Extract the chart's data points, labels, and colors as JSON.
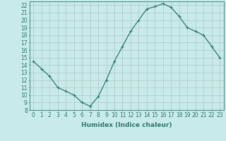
{
  "x": [
    0,
    1,
    2,
    3,
    4,
    5,
    6,
    7,
    8,
    9,
    10,
    11,
    12,
    13,
    14,
    15,
    16,
    17,
    18,
    19,
    20,
    21,
    22,
    23
  ],
  "y": [
    14.5,
    13.5,
    12.5,
    11.0,
    10.5,
    10.0,
    9.0,
    8.5,
    9.8,
    12.0,
    14.5,
    16.5,
    18.5,
    20.0,
    21.5,
    21.8,
    22.2,
    21.7,
    20.5,
    19.0,
    18.5,
    18.0,
    16.5,
    15.0
  ],
  "line_color": "#2d7a6e",
  "marker": "+",
  "markersize": 3,
  "linewidth": 0.9,
  "bg_color": "#c8eaea",
  "grid_color": "#b0c8c8",
  "xlabel": "Humidex (Indice chaleur)",
  "xlim": [
    -0.5,
    23.5
  ],
  "ylim": [
    8,
    22.5
  ],
  "yticks": [
    8,
    9,
    10,
    11,
    12,
    13,
    14,
    15,
    16,
    17,
    18,
    19,
    20,
    21,
    22
  ],
  "xticks": [
    0,
    1,
    2,
    3,
    4,
    5,
    6,
    7,
    8,
    9,
    10,
    11,
    12,
    13,
    14,
    15,
    16,
    17,
    18,
    19,
    20,
    21,
    22,
    23
  ],
  "xlabel_fontsize": 6.5,
  "tick_fontsize": 5.5
}
